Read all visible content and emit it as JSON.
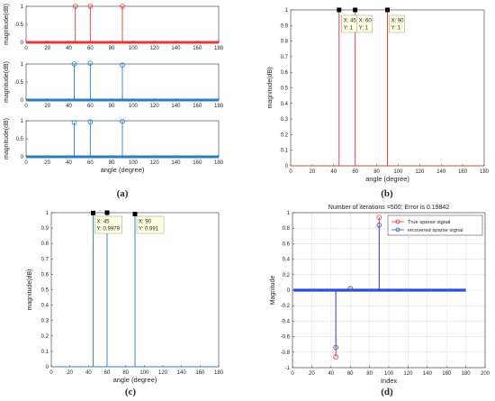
{
  "chart_data": [
    {
      "id": "a",
      "type": "stem",
      "caption": "(a)",
      "subplots": [
        {
          "ylabel": "magnitude(dB)",
          "xlabel": "",
          "xlim": [
            0,
            180
          ],
          "ylim": [
            0,
            1
          ],
          "xticks": [
            "0",
            "20",
            "40",
            "60",
            "80",
            "100",
            "120",
            "140",
            "160",
            "180"
          ],
          "yticks": [
            "0",
            "0.5",
            "1"
          ],
          "color": "#e8333b",
          "series": [
            {
              "x": [
                46,
                60,
                90
              ],
              "values": [
                1,
                1,
                1
              ]
            }
          ]
        },
        {
          "ylabel": "magnitude(dB)",
          "xlabel": "",
          "xlim": [
            0,
            180
          ],
          "ylim": [
            0,
            1
          ],
          "xticks": [
            "0",
            "20",
            "40",
            "60",
            "80",
            "100",
            "120",
            "140",
            "160",
            "180"
          ],
          "yticks": [
            "0",
            "0.5",
            "1"
          ],
          "color": "#2b7bbf",
          "series": [
            {
              "x": [
                45,
                60,
                90
              ],
              "values": [
                1,
                1.02,
                0.97
              ]
            }
          ]
        },
        {
          "ylabel": "magnitude(dB)",
          "xlabel": "angle (degree)",
          "xlim": [
            0,
            180
          ],
          "ylim": [
            0,
            1
          ],
          "xticks": [
            "0",
            "20",
            "40",
            "60",
            "80",
            "100",
            "120",
            "140",
            "160",
            "180"
          ],
          "yticks": [
            "0",
            "0.5",
            "1"
          ],
          "color": "#2b7bbf",
          "series": [
            {
              "x": [
                45,
                60,
                90
              ],
              "values": [
                0.95,
                0.97,
                0.98
              ]
            }
          ]
        }
      ]
    },
    {
      "id": "b",
      "type": "stem",
      "caption": "(b)",
      "ylabel": "magnitude(dB)",
      "xlabel": "angle (degree)",
      "xlim": [
        0,
        180
      ],
      "ylim": [
        0,
        1
      ],
      "xticks": [
        "0",
        "20",
        "40",
        "60",
        "80",
        "100",
        "120",
        "140",
        "160",
        "180"
      ],
      "yticks": [
        "0",
        "0.1",
        "0.2",
        "0.3",
        "0.4",
        "0.5",
        "0.6",
        "0.7",
        "0.8",
        "0.9",
        "1"
      ],
      "color": "#e8333b",
      "series": [
        {
          "x": [
            45,
            60,
            90
          ],
          "values": [
            1,
            1,
            1
          ]
        }
      ],
      "datatips": [
        {
          "line1": "X: 45",
          "line2": "Y: 1"
        },
        {
          "line1": "X: 60",
          "line2": "Y: 1"
        },
        {
          "line1": "X: 90",
          "line2": "Y: 1"
        }
      ]
    },
    {
      "id": "c",
      "type": "stem",
      "caption": "(c)",
      "ylabel": "magnitude(dB)",
      "xlabel": "angle (degree)",
      "xlim": [
        0,
        180
      ],
      "ylim": [
        0,
        1
      ],
      "xticks": [
        "0",
        "20",
        "40",
        "60",
        "80",
        "100",
        "120",
        "140",
        "160",
        "180"
      ],
      "yticks": [
        "0",
        "0.1",
        "0.2",
        "0.3",
        "0.4",
        "0.5",
        "0.6",
        "0.7",
        "0.8",
        "0.9",
        "1"
      ],
      "color": "#2b7bbf",
      "series": [
        {
          "x": [
            45,
            60,
            90
          ],
          "values": [
            0.9979,
            1,
            0.991
          ]
        }
      ],
      "datatips": [
        {
          "line1": "X: 45",
          "line2": "Y: 0.9979"
        },
        {
          "line1": "X: 90",
          "line2": "Y: 0.991"
        }
      ]
    },
    {
      "id": "d",
      "type": "stem",
      "caption": "(d)",
      "title": "Number of iterations =500; Error is 0.19842",
      "ylabel": "Magnitude",
      "xlabel": "Index",
      "xlim": [
        0,
        200
      ],
      "ylim": [
        -1,
        1
      ],
      "xticks": [
        "0",
        "20",
        "40",
        "60",
        "80",
        "100",
        "120",
        "140",
        "160",
        "180",
        "200"
      ],
      "yticks": [
        "-1",
        "-0.8",
        "-0.6",
        "-0.4",
        "-0.2",
        "0",
        "0.2",
        "0.4",
        "0.6",
        "0.8",
        "1"
      ],
      "grid": true,
      "legend": {
        "position": "top-right"
      },
      "series": [
        {
          "name": "True sparse signal",
          "color": "#e8333b",
          "x": [
            45,
            60,
            90
          ],
          "values": [
            -0.86,
            0.02,
            0.94
          ]
        },
        {
          "name": "recovered sparse signal",
          "color": "#2b4fd6",
          "x": [
            45,
            60,
            90
          ],
          "values": [
            -0.74,
            0.02,
            0.84
          ]
        }
      ]
    }
  ]
}
